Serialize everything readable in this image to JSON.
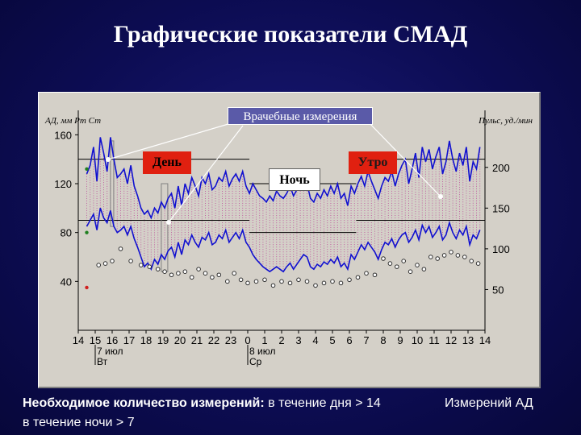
{
  "title": "Графические показатели СМАД",
  "chart_data": {
    "type": "line",
    "axis_left_label": "АД, мм Рт Ст",
    "axis_right_label": "Пульс, уд./мин",
    "left_axis": {
      "ticks": [
        40,
        80,
        120,
        160
      ],
      "range": [
        0,
        180
      ]
    },
    "right_axis": {
      "ticks": [
        50,
        100,
        150,
        200
      ],
      "range": [
        0,
        270
      ]
    },
    "x_ticks": [
      "14",
      "15",
      "16",
      "17",
      "18",
      "19",
      "20",
      "21",
      "22",
      "23",
      "0",
      "1",
      "2",
      "3",
      "4",
      "5",
      "6",
      "7",
      "8",
      "9",
      "10",
      "11",
      "12",
      "13",
      "14"
    ],
    "date_labels": [
      {
        "date": "7 июл",
        "weekday": "Вт"
      },
      {
        "date": "8 июл",
        "weekday": "Ср"
      }
    ],
    "thresholds": [
      {
        "period": "day",
        "from": 14,
        "to": 24.1,
        "upper": 140,
        "lower": 90
      },
      {
        "period": "night",
        "from": 24.1,
        "to": 30.4,
        "upper": 120,
        "lower": 80
      },
      {
        "period": "day",
        "from": 30.4,
        "to": 38,
        "upper": 140,
        "lower": 90
      }
    ],
    "series": [
      {
        "key": "systolic",
        "x": [
          14.5,
          14.7,
          14.9,
          15.1,
          15.3,
          15.5,
          15.7,
          15.9,
          16.1,
          16.3,
          16.5,
          16.7,
          16.9,
          17.1,
          17.3,
          17.5,
          17.7,
          17.9,
          18.1,
          18.3,
          18.5,
          18.7,
          18.9,
          19.1,
          19.3,
          19.5,
          19.7,
          19.9,
          20.1,
          20.3,
          20.5,
          20.7,
          20.9,
          21.1,
          21.3,
          21.5,
          21.7,
          21.9,
          22.1,
          22.3,
          22.5,
          22.7,
          22.9,
          23.1,
          23.3,
          23.5,
          23.7,
          23.9,
          24.1,
          24.3,
          24.5,
          24.7,
          24.9,
          25.1,
          25.3,
          25.5,
          25.7,
          25.9,
          26.1,
          26.3,
          26.5,
          26.7,
          26.9,
          27.1,
          27.3,
          27.5,
          27.7,
          27.9,
          28.1,
          28.3,
          28.5,
          28.7,
          28.9,
          29.1,
          29.3,
          29.5,
          29.7,
          29.9,
          30.1,
          30.3,
          30.5,
          30.7,
          30.9,
          31.1,
          31.3,
          31.5,
          31.7,
          31.9,
          32.1,
          32.3,
          32.5,
          32.7,
          32.9,
          33.1,
          33.3,
          33.5,
          33.7,
          33.9,
          34.1,
          34.3,
          34.5,
          34.7,
          34.9,
          35.1,
          35.3,
          35.5,
          35.7,
          35.9,
          36.1,
          36.3,
          36.5,
          36.7,
          36.9,
          37.1,
          37.3,
          37.5,
          37.7
        ],
        "values": [
          128,
          135,
          150,
          122,
          158,
          145,
          130,
          158,
          140,
          125,
          128,
          132,
          120,
          135,
          118,
          110,
          100,
          95,
          98,
          92,
          100,
          96,
          105,
          100,
          108,
          112,
          100,
          118,
          102,
          120,
          112,
          125,
          118,
          110,
          125,
          120,
          128,
          115,
          118,
          125,
          122,
          130,
          118,
          124,
          128,
          122,
          130,
          118,
          112,
          120,
          115,
          110,
          108,
          105,
          110,
          106,
          114,
          110,
          108,
          112,
          118,
          110,
          115,
          122,
          130,
          120,
          108,
          105,
          112,
          108,
          115,
          110,
          118,
          112,
          120,
          108,
          112,
          102,
          118,
          112,
          120,
          126,
          118,
          130,
          122,
          115,
          108,
          118,
          125,
          122,
          130,
          118,
          128,
          135,
          140,
          120,
          132,
          145,
          125,
          150,
          138,
          148,
          132,
          142,
          150,
          128,
          138,
          155,
          140,
          130,
          145,
          135,
          150,
          122,
          138,
          132,
          150
        ],
        "color": "#1010d0"
      },
      {
        "key": "diastolic",
        "x": [
          14.5,
          14.7,
          14.9,
          15.1,
          15.3,
          15.5,
          15.7,
          15.9,
          16.1,
          16.3,
          16.5,
          16.7,
          16.9,
          17.1,
          17.3,
          17.5,
          17.7,
          17.9,
          18.1,
          18.3,
          18.5,
          18.7,
          18.9,
          19.1,
          19.3,
          19.5,
          19.7,
          19.9,
          20.1,
          20.3,
          20.5,
          20.7,
          20.9,
          21.1,
          21.3,
          21.5,
          21.7,
          21.9,
          22.1,
          22.3,
          22.5,
          22.7,
          22.9,
          23.1,
          23.3,
          23.5,
          23.7,
          23.9,
          24.1,
          24.3,
          24.5,
          24.7,
          24.9,
          25.1,
          25.3,
          25.5,
          25.7,
          25.9,
          26.1,
          26.3,
          26.5,
          26.7,
          26.9,
          27.1,
          27.3,
          27.5,
          27.7,
          27.9,
          28.1,
          28.3,
          28.5,
          28.7,
          28.9,
          29.1,
          29.3,
          29.5,
          29.7,
          29.9,
          30.1,
          30.3,
          30.5,
          30.7,
          30.9,
          31.1,
          31.3,
          31.5,
          31.7,
          31.9,
          32.1,
          32.3,
          32.5,
          32.7,
          32.9,
          33.1,
          33.3,
          33.5,
          33.7,
          33.9,
          34.1,
          34.3,
          34.5,
          34.7,
          34.9,
          35.1,
          35.3,
          35.5,
          35.7,
          35.9,
          36.1,
          36.3,
          36.5,
          36.7,
          36.9,
          37.1,
          37.3,
          37.5,
          37.7
        ],
        "values": [
          85,
          90,
          95,
          82,
          100,
          92,
          88,
          98,
          85,
          80,
          82,
          85,
          78,
          85,
          75,
          68,
          60,
          52,
          55,
          50,
          58,
          54,
          62,
          58,
          65,
          68,
          60,
          72,
          62,
          74,
          70,
          78,
          72,
          68,
          76,
          74,
          80,
          70,
          72,
          78,
          75,
          82,
          72,
          76,
          80,
          75,
          82,
          72,
          68,
          62,
          58,
          55,
          52,
          50,
          48,
          50,
          52,
          50,
          48,
          52,
          55,
          50,
          54,
          58,
          62,
          60,
          52,
          50,
          54,
          52,
          56,
          54,
          58,
          55,
          60,
          52,
          55,
          50,
          62,
          58,
          64,
          70,
          66,
          72,
          68,
          64,
          58,
          66,
          72,
          70,
          75,
          68,
          74,
          78,
          80,
          72,
          76,
          82,
          74,
          86,
          80,
          85,
          76,
          80,
          85,
          74,
          78,
          88,
          80,
          75,
          82,
          78,
          85,
          70,
          78,
          75,
          82
        ],
        "color": "#1010d0"
      },
      {
        "key": "pulse",
        "x": [
          15.2,
          15.6,
          16.0,
          16.5,
          17.1,
          17.7,
          18.2,
          18.7,
          19.1,
          19.5,
          19.9,
          20.3,
          20.7,
          21.1,
          21.5,
          21.9,
          22.3,
          22.8,
          23.2,
          23.6,
          24.0,
          24.5,
          25.0,
          25.5,
          26.0,
          26.5,
          27.0,
          27.5,
          28.0,
          28.5,
          29.0,
          29.5,
          30.0,
          30.5,
          31.0,
          31.5,
          32.0,
          32.4,
          32.8,
          33.2,
          33.6,
          34.0,
          34.4,
          34.8,
          35.2,
          35.6,
          36.0,
          36.4,
          36.8,
          37.2,
          37.6
        ],
        "values": [
          80,
          82,
          85,
          100,
          85,
          80,
          78,
          75,
          72,
          68,
          70,
          72,
          65,
          75,
          70,
          65,
          68,
          60,
          70,
          62,
          58,
          60,
          62,
          55,
          60,
          58,
          62,
          60,
          55,
          58,
          60,
          58,
          62,
          65,
          70,
          68,
          88,
          82,
          78,
          85,
          72,
          80,
          75,
          90,
          88,
          92,
          96,
          92,
          90,
          85,
          82
        ],
        "color": "#303030"
      }
    ]
  },
  "callouts": {
    "doctor": "Врачебные измерения",
    "day": "День",
    "morning": "Утро",
    "night": "Ночь"
  },
  "footer": {
    "bold_part": "Необходимое количество измерений:",
    "day_part": " в течение дня > 14",
    "night_part": "в течение ночи > 7",
    "right_text": "Измерений АД"
  }
}
